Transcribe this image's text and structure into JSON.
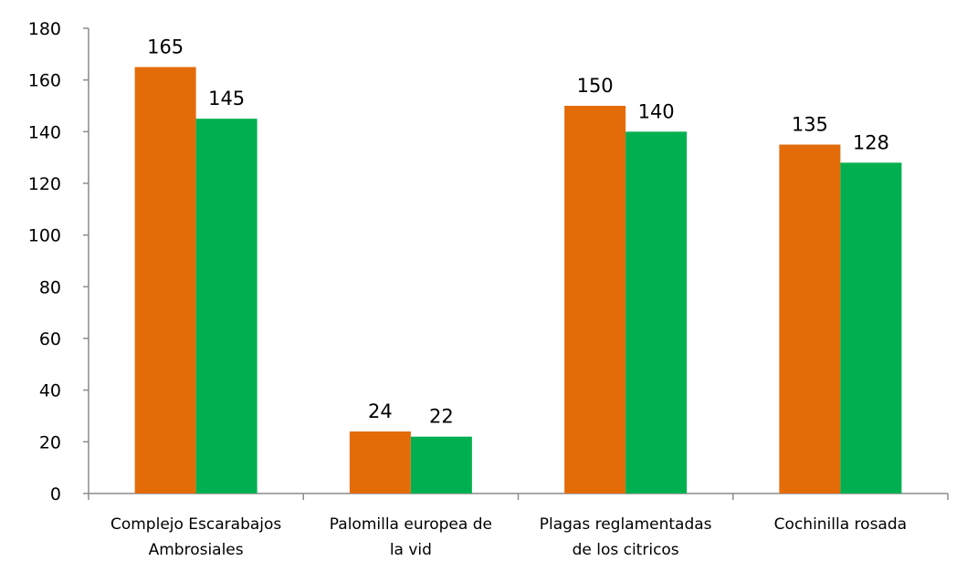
{
  "chart_data": {
    "type": "bar",
    "title": "",
    "xlabel": "",
    "ylabel": "",
    "ylim": [
      0,
      180
    ],
    "y_ticks": [
      "0",
      "20",
      "40",
      "60",
      "80",
      "100",
      "120",
      "140",
      "160",
      "180"
    ],
    "grid": false,
    "legend": "none",
    "categories": [
      [
        "Complejo Escarabajos",
        "Ambrosiales"
      ],
      [
        "Palomilla europea de",
        "la vid"
      ],
      [
        "Plagas reglamentadas",
        "de los citricos"
      ],
      [
        "Cochinilla rosada"
      ]
    ],
    "series": [
      {
        "color": "#e36c09",
        "values": [
          165,
          24,
          150,
          135
        ]
      },
      {
        "color": "#00b050",
        "values": [
          145,
          22,
          140,
          128
        ]
      }
    ]
  }
}
